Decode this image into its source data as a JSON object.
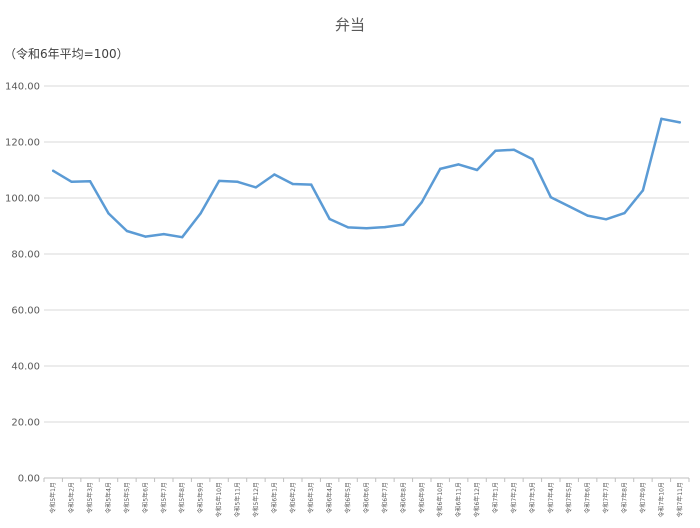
{
  "chart_data": {
    "type": "line",
    "title": "弁当",
    "unit_label": "（令和6年平均=100）",
    "xlabel": "",
    "ylabel": "",
    "ylim": [
      0,
      140
    ],
    "y_ticks": [
      "0.00",
      "20.00",
      "40.00",
      "60.00",
      "80.00",
      "100.00",
      "120.00",
      "140.00"
    ],
    "grid": "horizontal",
    "legend": "none",
    "line_color": "#5B9BD5",
    "categories": [
      "令和5年1月",
      "令和5年2月",
      "令和5年3月",
      "令和5年4月",
      "令和5年5月",
      "令和5年6月",
      "令和5年7月",
      "令和5年8月",
      "令和5年9月",
      "令和5年10月",
      "令和5年11月",
      "令和5年12月",
      "令和6年1月",
      "令和6年2月",
      "令和6年3月",
      "令和6年4月",
      "令和6年5月",
      "令和6年6月",
      "令和6年7月",
      "令和6年8月",
      "令和6年9月",
      "令和6年10月",
      "令和6年11月",
      "令和6年12月",
      "令和7年1月",
      "令和7年2月",
      "令和7年3月",
      "令和7年4月",
      "令和7年5月",
      "令和7年6月",
      "令和7年7月",
      "令和7年8月",
      "令和7年9月",
      "令和7年10月",
      "令和7年11月"
    ],
    "series": [
      {
        "name": "",
        "values": [
          109.7,
          105.8,
          106.0,
          94.5,
          88.2,
          86.2,
          87.1,
          86.0,
          94.5,
          106.1,
          105.8,
          103.8,
          108.4,
          105.0,
          104.8,
          92.5,
          89.5,
          89.2,
          89.6,
          90.5,
          98.5,
          110.4,
          112.0,
          110.0,
          116.9,
          117.2,
          113.9,
          100.3,
          97.0,
          93.7,
          92.4,
          94.6,
          102.7,
          128.3,
          127.0
        ]
      }
    ]
  }
}
